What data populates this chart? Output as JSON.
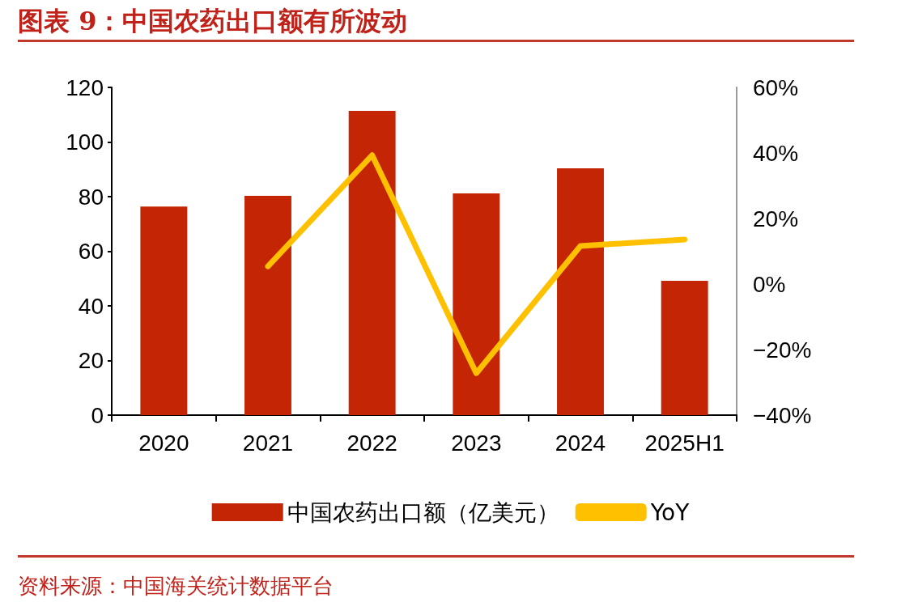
{
  "chart_data": {
    "type": "bar",
    "title": "图表 9：中国农药出口额有所波动",
    "categories": [
      "2020",
      "2021",
      "2022",
      "2023",
      "2024",
      "2025H1"
    ],
    "series": [
      {
        "name": "中国农药出口额（亿美元）",
        "color": "#c32505",
        "values": [
          76.4,
          80.3,
          111.4,
          81.2,
          90.4,
          49.2
        ]
      },
      {
        "name": "YoY",
        "type": "line",
        "axis": "y2",
        "color": "#ffc000",
        "values": [
          null,
          5.4,
          39.3,
          -27.2,
          11.6,
          13.6
        ]
      }
    ],
    "ylim": [
      0,
      120
    ],
    "yticks": [
      0,
      20,
      40,
      60,
      80,
      100,
      120
    ],
    "y2lim": [
      -40,
      60
    ],
    "y2ticks": [
      {
        "value": -40,
        "label": "−40%"
      },
      {
        "value": -20,
        "label": "−20%"
      },
      {
        "value": 0,
        "label": "0%"
      },
      {
        "value": 20,
        "label": "20%"
      },
      {
        "value": 40,
        "label": "40%"
      },
      {
        "value": 60,
        "label": "60%"
      }
    ],
    "legend": "bottom",
    "marker": "none",
    "annotations": [
      "资料来源：中国海关统计数据平台"
    ]
  }
}
